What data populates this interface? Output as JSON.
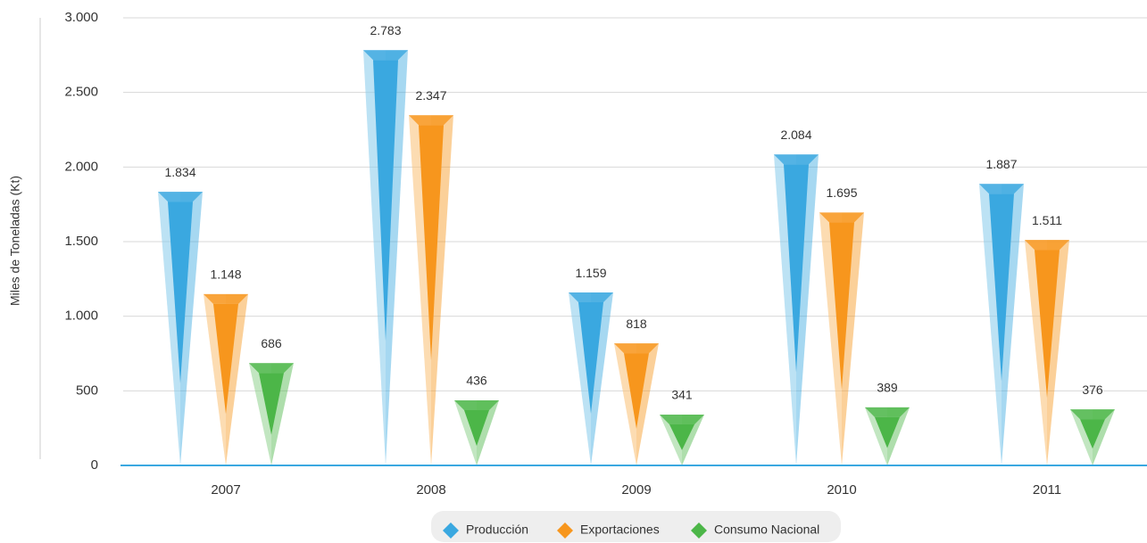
{
  "chart_data": {
    "type": "bar",
    "y_label": "Miles de Toneladas (Kt)",
    "categories": [
      "2007",
      "2008",
      "2009",
      "2010",
      "2011"
    ],
    "series": [
      {
        "name": "Producción",
        "color": "#3aa8e0",
        "values": [
          1834,
          2783,
          1159,
          2084,
          1887
        ],
        "value_labels": [
          "1.834",
          "2.783",
          "1.159",
          "2.084",
          "1.887"
        ]
      },
      {
        "name": "Exportaciones",
        "color": "#f7961d",
        "values": [
          1148,
          2347,
          818,
          1695,
          1511
        ],
        "value_labels": [
          "1.148",
          "2.347",
          "818",
          "1.695",
          "1.511"
        ]
      },
      {
        "name": "Consumo Nacional",
        "color": "#4cb648",
        "values": [
          686,
          436,
          341,
          389,
          376
        ],
        "value_labels": [
          "686",
          "436",
          "341",
          "389",
          "376"
        ]
      }
    ],
    "ylim": [
      0,
      3000
    ],
    "yticks": [
      0,
      {
        "value": 500,
        "label": "500"
      },
      {
        "value": 1000,
        "label": "1.000"
      },
      {
        "value": 1500,
        "label": "1.500"
      },
      {
        "value": 2000,
        "label": "2.000"
      },
      {
        "value": 2500,
        "label": "2.500"
      },
      {
        "value": 3000,
        "label": "3.000"
      }
    ],
    "grid": true
  }
}
